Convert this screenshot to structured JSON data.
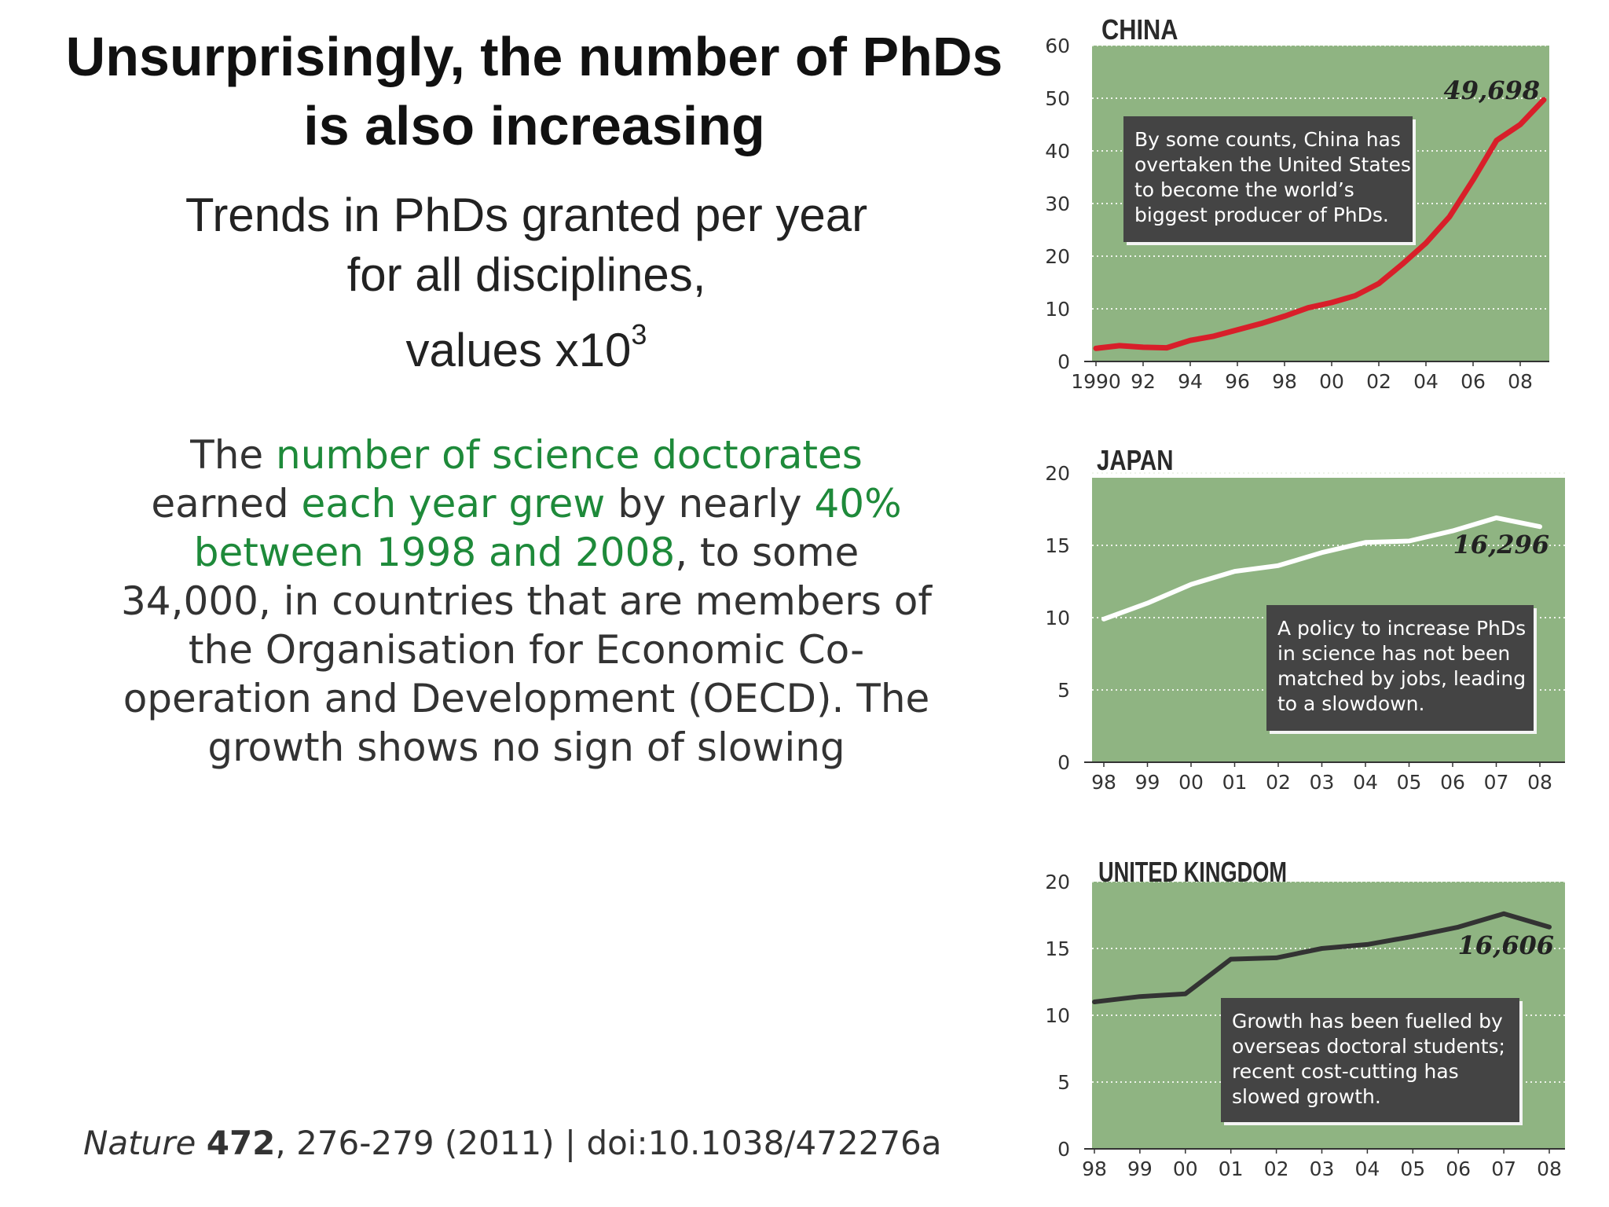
{
  "slide": {
    "title_line1": "Unsurprisingly, the number of PhDs",
    "title_line2": "is also increasing",
    "subtitle_line1": "Trends in PhDs granted per year",
    "subtitle_line2": "for all disciplines,",
    "subtitle_line3": "values x10",
    "subtitle_exp": "3",
    "para": {
      "t1": "The ",
      "h1": "number of science doctorates",
      "t2": " earned ",
      "h2": "each year grew",
      "t3": " by nearly ",
      "h3": "40% between 1998 and 2008",
      "t4": ", to some 34,000, in countries that are members of the Organisation for Economic Co-operation and Development (OECD). The growth shows no sign of slowing"
    },
    "citation": {
      "journal": "Nature",
      "volume": "472",
      "rest": ", 276-279 (2011) | doi:10.1038/472276a"
    }
  },
  "chart_data": [
    {
      "type": "line",
      "title": "CHINA",
      "x": [
        1990,
        1991,
        1992,
        1993,
        1994,
        1995,
        1996,
        1997,
        1998,
        1999,
        2000,
        2001,
        2002,
        2003,
        2004,
        2005,
        2006,
        2007,
        2008,
        2009
      ],
      "values": [
        2.5,
        3.0,
        2.7,
        2.6,
        4.0,
        4.8,
        6.0,
        7.2,
        8.6,
        10.2,
        11.2,
        12.5,
        14.8,
        18.5,
        22.5,
        27.5,
        34.5,
        42.0,
        45.0,
        49.698
      ],
      "xticks": [
        "1990",
        "92",
        "94",
        "96",
        "98",
        "00",
        "02",
        "04",
        "06",
        "08"
      ],
      "xtick_years": [
        1990,
        1992,
        1994,
        1996,
        1998,
        2000,
        2002,
        2004,
        2006,
        2008
      ],
      "yticks": [
        0,
        10,
        20,
        30,
        40,
        50,
        60
      ],
      "ylim": [
        0,
        60
      ],
      "xlim": [
        1990,
        2009
      ],
      "end_label": "49,698",
      "line_color": "#d81f2a",
      "note": [
        "By some counts, China has",
        "overtaken the United States",
        "to become the world’s",
        "biggest producer of PhDs."
      ]
    },
    {
      "type": "line",
      "title": "JAPAN",
      "x": [
        1998,
        1999,
        2000,
        2001,
        2002,
        2003,
        2004,
        2005,
        2006,
        2007,
        2008
      ],
      "values": [
        9.9,
        11.0,
        12.3,
        13.2,
        13.6,
        14.5,
        15.2,
        15.3,
        16.0,
        16.9,
        16.296
      ],
      "xticks": [
        "98",
        "99",
        "00",
        "01",
        "02",
        "03",
        "04",
        "05",
        "06",
        "07",
        "08"
      ],
      "xtick_years": [
        1998,
        1999,
        2000,
        2001,
        2002,
        2003,
        2004,
        2005,
        2006,
        2007,
        2008
      ],
      "yticks": [
        0,
        5,
        10,
        15,
        20
      ],
      "ylim": [
        0,
        20
      ],
      "xlim": [
        1998,
        2008
      ],
      "end_label": "16,296",
      "line_color": "#ffffff",
      "note": [
        "A policy to increase PhDs",
        "in science has not been",
        "matched by jobs, leading",
        "to a slowdown."
      ]
    },
    {
      "type": "line",
      "title": "UNITED KINGDOM",
      "x": [
        1998,
        1999,
        2000,
        2001,
        2002,
        2003,
        2004,
        2005,
        2006,
        2007,
        2008
      ],
      "values": [
        11.0,
        11.4,
        11.6,
        14.2,
        14.3,
        15.0,
        15.3,
        15.9,
        16.6,
        17.6,
        16.606
      ],
      "xticks": [
        "98",
        "99",
        "00",
        "01",
        "02",
        "03",
        "04",
        "05",
        "06",
        "07",
        "08"
      ],
      "xtick_years": [
        1998,
        1999,
        2000,
        2001,
        2002,
        2003,
        2004,
        2005,
        2006,
        2007,
        2008
      ],
      "yticks": [
        0,
        5,
        10,
        15,
        20
      ],
      "ylim": [
        0,
        20
      ],
      "xlim": [
        1998,
        2008
      ],
      "end_label": "16,606",
      "line_color": "#333333",
      "note": [
        "Growth has been fuelled by",
        "overseas doctoral students;",
        "recent cost-cutting has",
        "slowed growth."
      ]
    }
  ]
}
